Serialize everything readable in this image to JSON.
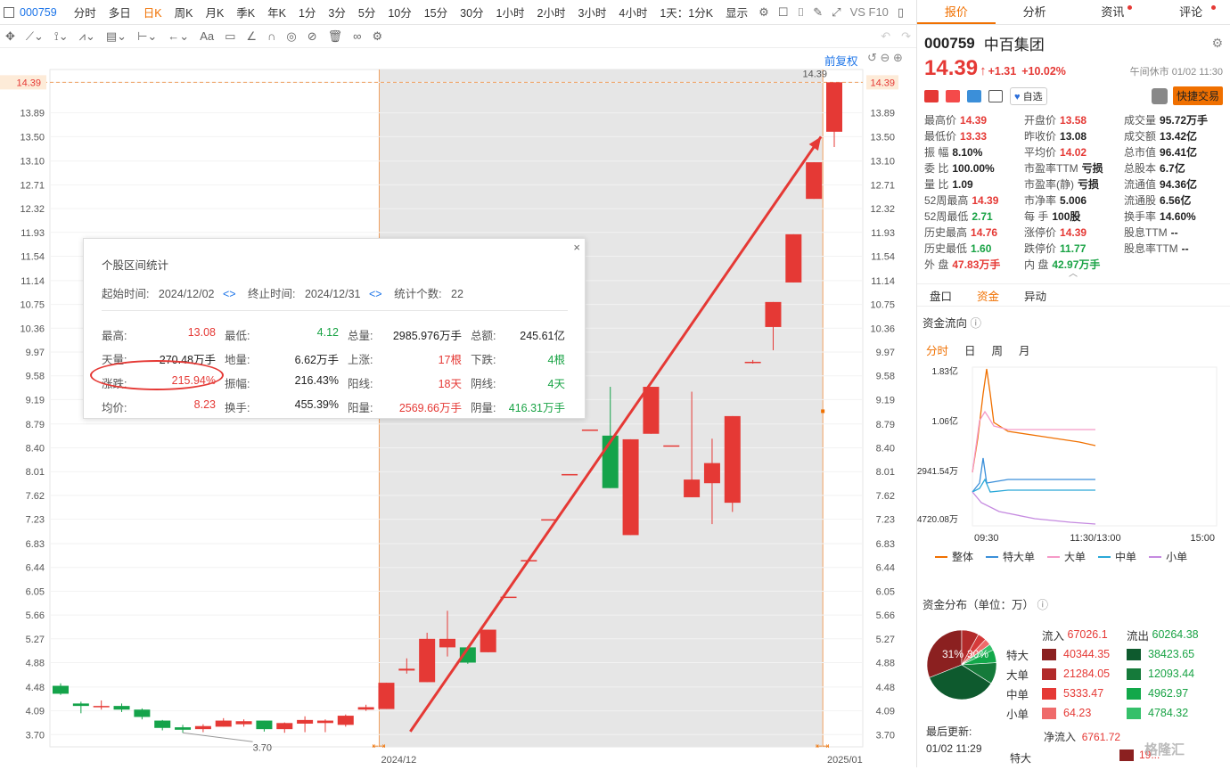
{
  "topbar": {
    "code": "000759",
    "periods": [
      "分时",
      "多日",
      "日K",
      "周K",
      "月K",
      "季K",
      "年K",
      "1分",
      "3分",
      "5分",
      "10分",
      "15分",
      "30分",
      "1小时",
      "2小时",
      "3小时",
      "4小时",
      "1天：1分K",
      "显示"
    ],
    "active_period": "日K",
    "right_text": "VS F10"
  },
  "chart": {
    "restore_label": "前复权",
    "y_ticks": [
      "14.39",
      "13.89",
      "13.50",
      "13.10",
      "12.71",
      "12.32",
      "11.93",
      "11.54",
      "11.14",
      "10.75",
      "10.36",
      "9.97",
      "9.58",
      "9.19",
      "8.79",
      "8.40",
      "8.01",
      "7.62",
      "7.23",
      "6.83",
      "6.44",
      "6.05",
      "5.66",
      "5.27",
      "4.88",
      "4.48",
      "4.09",
      "3.70"
    ],
    "current_price_label": "14.39",
    "high_label": "14.39",
    "low_label": "3.70",
    "x_labels": [
      "2024/12",
      "2025/01"
    ],
    "colors": {
      "up": "#e53935",
      "down": "#14a34a",
      "shade": "#e6e6e6",
      "guide": "#f0a060"
    }
  },
  "chart_data": {
    "type": "candlestick",
    "ylim": [
      3.5,
      14.6
    ],
    "candles": [
      {
        "o": 4.5,
        "h": 4.54,
        "l": 4.35,
        "c": 4.37
      },
      {
        "o": 4.21,
        "h": 4.24,
        "l": 4.05,
        "c": 4.17
      },
      {
        "o": 4.17,
        "h": 4.26,
        "l": 4.11,
        "c": 4.17
      },
      {
        "o": 4.17,
        "h": 4.21,
        "l": 4.07,
        "c": 4.11
      },
      {
        "o": 4.11,
        "h": 4.13,
        "l": 3.95,
        "c": 3.99
      },
      {
        "o": 3.93,
        "h": 3.94,
        "l": 3.77,
        "c": 3.81
      },
      {
        "o": 3.82,
        "h": 3.86,
        "l": 3.73,
        "c": 3.78
      },
      {
        "o": 3.79,
        "h": 3.87,
        "l": 3.74,
        "c": 3.84
      },
      {
        "o": 3.83,
        "h": 3.97,
        "l": 3.83,
        "c": 3.93
      },
      {
        "o": 3.87,
        "h": 3.95,
        "l": 3.83,
        "c": 3.92
      },
      {
        "o": 3.93,
        "h": 3.93,
        "l": 3.75,
        "c": 3.79
      },
      {
        "o": 3.79,
        "h": 3.9,
        "l": 3.73,
        "c": 3.89
      },
      {
        "o": 3.88,
        "h": 4.0,
        "l": 3.74,
        "c": 3.94
      },
      {
        "o": 3.89,
        "h": 3.95,
        "l": 3.74,
        "c": 3.93
      },
      {
        "o": 3.86,
        "h": 4.03,
        "l": 3.83,
        "c": 4.01
      },
      {
        "o": 4.11,
        "h": 4.19,
        "l": 4.09,
        "c": 4.15
      },
      {
        "o": 4.12,
        "h": 4.55,
        "l": 4.12,
        "c": 4.55
      },
      {
        "o": 4.75,
        "h": 4.95,
        "l": 4.7,
        "c": 4.78
      },
      {
        "o": 4.56,
        "h": 5.37,
        "l": 4.56,
        "c": 5.27
      },
      {
        "o": 5.13,
        "h": 5.73,
        "l": 4.98,
        "c": 5.27
      },
      {
        "o": 5.13,
        "h": 5.15,
        "l": 4.86,
        "c": 4.88
      },
      {
        "o": 5.05,
        "h": 5.42,
        "l": 5.05,
        "c": 5.42
      },
      {
        "o": 5.96,
        "h": 5.96,
        "l": 5.96,
        "c": 5.96
      },
      {
        "o": 6.56,
        "h": 6.56,
        "l": 6.56,
        "c": 6.56
      },
      {
        "o": 7.23,
        "h": 7.23,
        "l": 7.23,
        "c": 7.23
      },
      {
        "o": 7.97,
        "h": 7.97,
        "l": 7.97,
        "c": 7.97
      },
      {
        "o": 8.7,
        "h": 8.7,
        "l": 8.7,
        "c": 8.7
      },
      {
        "o": 8.6,
        "h": 9.4,
        "l": 7.74,
        "c": 7.74
      },
      {
        "o": 6.97,
        "h": 8.54,
        "l": 6.97,
        "c": 8.54
      },
      {
        "o": 8.63,
        "h": 9.4,
        "l": 8.63,
        "c": 9.4
      },
      {
        "o": 8.44,
        "h": 8.44,
        "l": 8.44,
        "c": 8.44
      },
      {
        "o": 7.59,
        "h": 9.32,
        "l": 7.59,
        "c": 7.88
      },
      {
        "o": 7.82,
        "h": 8.55,
        "l": 7.15,
        "c": 8.15
      },
      {
        "o": 7.5,
        "h": 8.92,
        "l": 7.35,
        "c": 8.92
      },
      {
        "o": 9.81,
        "h": 9.84,
        "l": 9.78,
        "c": 9.81
      },
      {
        "o": 10.38,
        "h": 10.79,
        "l": 10.0,
        "c": 10.79
      },
      {
        "o": 11.11,
        "h": 11.9,
        "l": 11.11,
        "c": 11.9
      },
      {
        "o": 12.48,
        "h": 13.08,
        "l": 12.48,
        "c": 13.08
      },
      {
        "o": 13.58,
        "h": 14.39,
        "l": 13.33,
        "c": 14.39
      }
    ]
  },
  "popup": {
    "title": "个股区间统计",
    "start_label": "起始时间:",
    "start": "2024/12/02",
    "end_label": "终止时间:",
    "end": "2024/12/31",
    "count_label": "统计个数:",
    "count": "22",
    "rows": [
      [
        [
          "最高:",
          "13.08"
        ],
        [
          "最低:",
          "4.12"
        ],
        [
          "总量:",
          "2985.976万手"
        ],
        [
          "总额:",
          "245.61亿"
        ]
      ],
      [
        [
          "天量:",
          "270.48万手"
        ],
        [
          "地量:",
          "6.62万手"
        ],
        [
          "上涨:",
          "17根"
        ],
        [
          "下跌:",
          "4根"
        ]
      ],
      [
        [
          "涨跌:",
          "215.94%"
        ],
        [
          "振幅:",
          "216.43%"
        ],
        [
          "阳线:",
          "18天"
        ],
        [
          "阴线:",
          "4天"
        ]
      ],
      [
        [
          "均价:",
          "8.23"
        ],
        [
          "换手:",
          "455.39%"
        ],
        [
          "阳量:",
          "2569.66万手"
        ],
        [
          "阴量:",
          "416.31万手"
        ]
      ]
    ]
  },
  "right": {
    "tabs": [
      "报价",
      "分析",
      "资讯",
      "评论"
    ],
    "code": "000759",
    "name": "中百集团",
    "price": "14.39",
    "change": "+1.31",
    "change_pct": "+10.02%",
    "market_status": "午间休市 01/02 11:30",
    "fav_label": "自选",
    "quick_trade": "快捷交易",
    "quote_rows": [
      [
        [
          "最高价",
          "14.39",
          "red"
        ],
        [
          "开盘价",
          "13.58",
          "red"
        ],
        [
          "成交量",
          "95.72万手",
          "blk"
        ]
      ],
      [
        [
          "最低价",
          "13.33",
          "red"
        ],
        [
          "昨收价",
          "13.08",
          "blk"
        ],
        [
          "成交额",
          "13.42亿",
          "blk"
        ]
      ],
      [
        [
          "振 幅",
          "8.10%",
          "blk"
        ],
        [
          "平均价",
          "14.02",
          "red"
        ],
        [
          "总市值",
          "96.41亿",
          "blk"
        ]
      ],
      [
        [
          "委 比",
          "100.00%",
          "blk"
        ],
        [
          "市盈率TTM",
          "亏损",
          "blk"
        ],
        [
          "总股本",
          "6.7亿",
          "blk"
        ]
      ],
      [
        [
          "量 比",
          "1.09",
          "blk"
        ],
        [
          "市盈率(静)",
          "亏损",
          "blk"
        ],
        [
          "流通值",
          "94.36亿",
          "blk"
        ]
      ],
      [
        [
          "52周最高",
          "14.39",
          "red"
        ],
        [
          "市净率",
          "5.006",
          "blk"
        ],
        [
          "流通股",
          "6.56亿",
          "blk"
        ]
      ],
      [
        [
          "52周最低",
          "2.71",
          "green"
        ],
        [
          "每 手",
          "100股",
          "blk"
        ],
        [
          "换手率",
          "14.60%",
          "blk"
        ]
      ],
      [
        [
          "历史最高",
          "14.76",
          "red"
        ],
        [
          "涨停价",
          "14.39",
          "red"
        ],
        [
          "股息TTM",
          "--",
          "blk"
        ]
      ],
      [
        [
          "历史最低",
          "1.60",
          "green"
        ],
        [
          "跌停价",
          "11.77",
          "green"
        ],
        [
          "股息率TTM",
          "--",
          "blk"
        ]
      ],
      [
        [
          "外 盘",
          "47.83万手",
          "red"
        ],
        [
          "内 盘",
          "42.97万手",
          "green"
        ],
        [
          "",
          "",
          ""
        ]
      ]
    ],
    "subtabs": [
      "盘口",
      "资金",
      "异动"
    ],
    "flow_title": "资金流向",
    "flow_tabs": [
      "分时",
      "日",
      "周",
      "月"
    ],
    "flow_y": [
      "1.83亿",
      "1.06亿",
      "2941.54万",
      "-4720.08万"
    ],
    "flow_x": [
      "09:30",
      "11:30/13:00",
      "15:00"
    ],
    "legend": [
      [
        "整体",
        "#f07000"
      ],
      [
        "特大单",
        "#3b8fd9"
      ],
      [
        "大单",
        "#f59ac8"
      ],
      [
        "中单",
        "#2aa8d8"
      ],
      [
        "小单",
        "#c58ae0"
      ]
    ],
    "dist_title": "资金分布（单位：万）",
    "dist_in_label": "流入",
    "dist_in": "67026.1",
    "dist_out_label": "流出",
    "dist_out": "60264.38",
    "dist_rows": [
      [
        "特大",
        "40344.35",
        "38423.65",
        "#8b2020",
        "#0e5a2e"
      ],
      [
        "大单",
        "21284.05",
        "12093.44",
        "#b22a2a",
        "#157a3a"
      ],
      [
        "中单",
        "5333.47",
        "4962.97",
        "#e53935",
        "#12a84a"
      ],
      [
        "小单",
        "64.23",
        "4784.32",
        "#ef6b6b",
        "#35c06a"
      ]
    ],
    "pie_in_pct": "31%",
    "pie_out_pct": "30%",
    "update_label": "最后更新:",
    "update_time": "01/02 11:29",
    "net_label": "净流入",
    "net_value": "6761.72",
    "bottom_row_label": "特大",
    "bottom_row_value": "19..."
  },
  "watermark": "格隆汇"
}
